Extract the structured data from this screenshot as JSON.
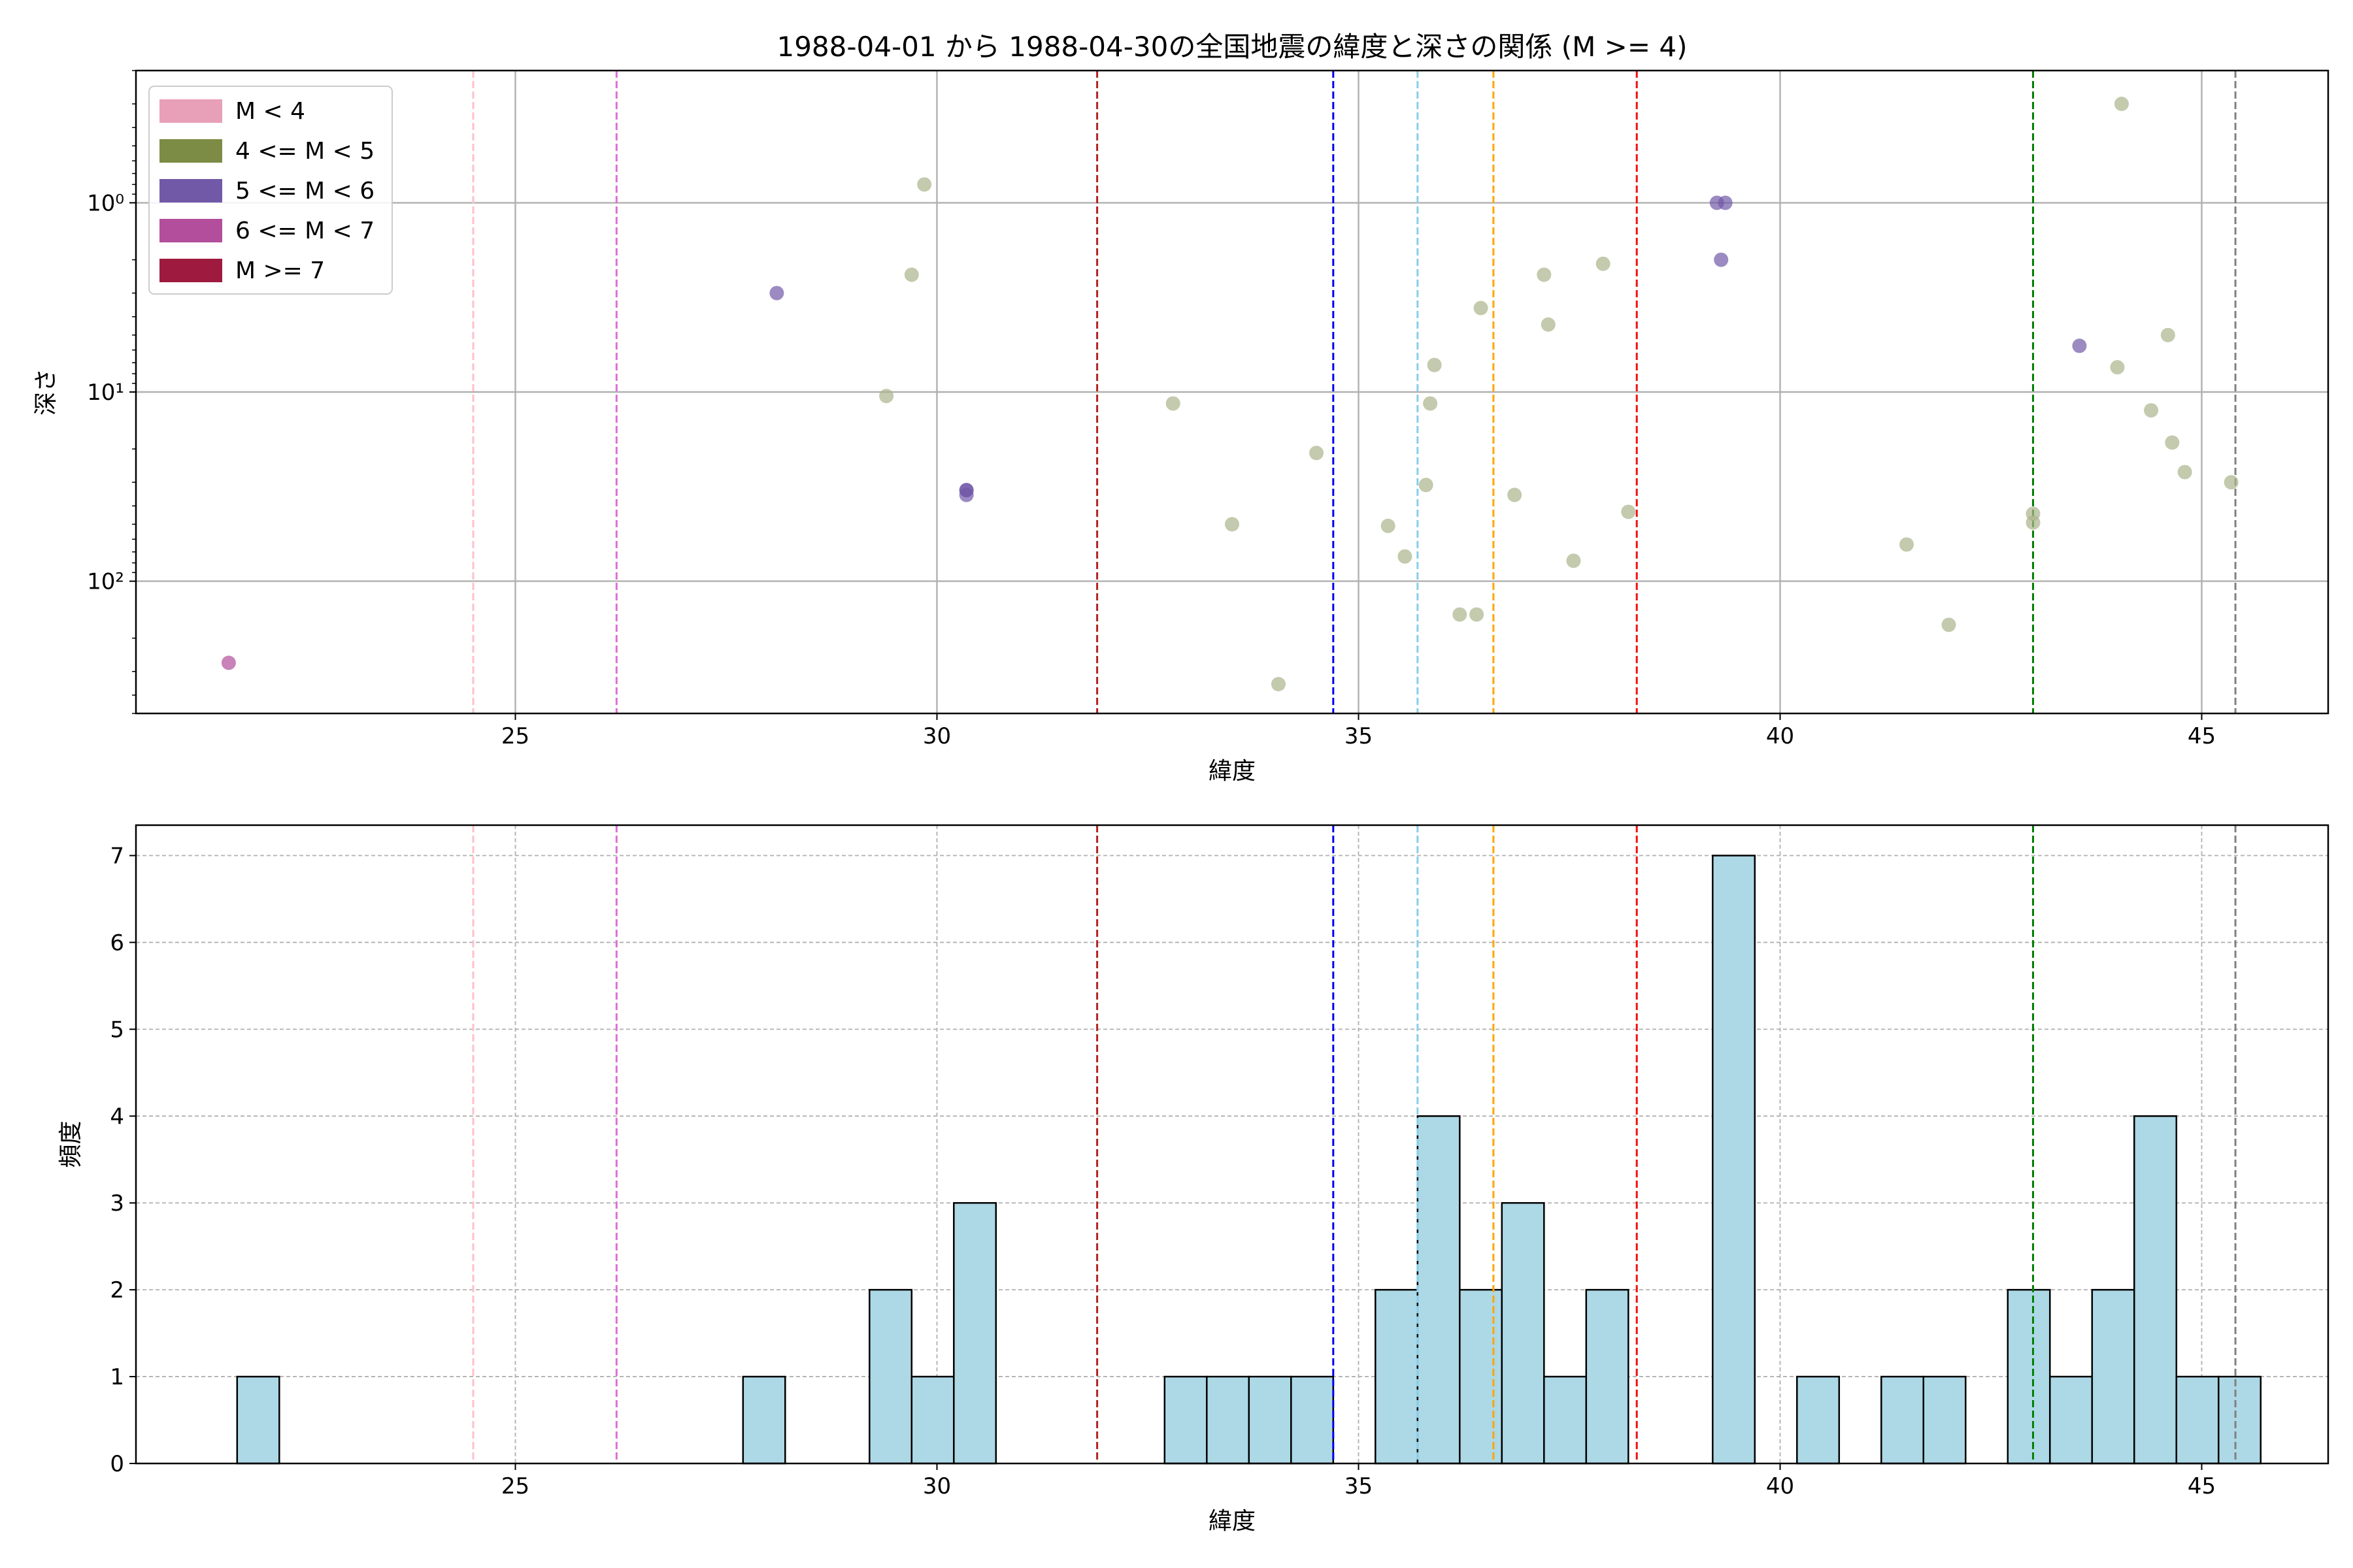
{
  "chart_data": [
    {
      "type": "scatter",
      "title": "1988-04-01 から 1988-04-30の全国地震の緯度と深さの関係 (M >= 4)",
      "xlabel": "緯度",
      "ylabel": "深さ",
      "xlim": [
        20.5,
        46.5
      ],
      "ylim": [
        500,
        0.2
      ],
      "yscale": "log",
      "y_inverted": true,
      "grid": true,
      "legend_position": "top-left",
      "x_ticks": [
        "25",
        "30",
        "35",
        "40",
        "45"
      ],
      "y_tick_values": [
        1,
        10,
        100
      ],
      "y_ticks": [
        "10⁰",
        "10¹",
        "10²"
      ],
      "legend": [
        {
          "label": "M < 4",
          "color": "#e8a0b8"
        },
        {
          "label": "4 <= M < 5",
          "color": "#7d8c45"
        },
        {
          "label": "5 <= M < 6",
          "color": "#7259a8"
        },
        {
          "label": "6 <= M < 7",
          "color": "#b24e9b"
        },
        {
          "label": "M >= 7",
          "color": "#9e1b3f"
        }
      ],
      "vlines": [
        {
          "x": 24.5,
          "color": "pink"
        },
        {
          "x": 26.2,
          "color": "orchid"
        },
        {
          "x": 31.9,
          "color": "#b22222"
        },
        {
          "x": 34.7,
          "color": "#0000ee"
        },
        {
          "x": 35.7,
          "color": "skyblue"
        },
        {
          "x": 36.6,
          "color": "orange"
        },
        {
          "x": 38.3,
          "color": "#ee1111"
        },
        {
          "x": 43.0,
          "color": "green"
        },
        {
          "x": 45.4,
          "color": "gray"
        }
      ],
      "series": [
        {
          "name": "4 <= M < 5",
          "color": "#aab48a",
          "points": [
            [
              29.4,
              10.5
            ],
            [
              29.7,
              2.4
            ],
            [
              29.85,
              0.8
            ],
            [
              32.8,
              11.5
            ],
            [
              33.5,
              50
            ],
            [
              34.05,
              350
            ],
            [
              34.5,
              21
            ],
            [
              35.35,
              51
            ],
            [
              35.55,
              74
            ],
            [
              35.8,
              31
            ],
            [
              35.85,
              11.5
            ],
            [
              35.9,
              7.2
            ],
            [
              36.2,
              150
            ],
            [
              36.4,
              150
            ],
            [
              36.45,
              3.6
            ],
            [
              36.85,
              35
            ],
            [
              37.2,
              2.4
            ],
            [
              37.25,
              4.4
            ],
            [
              37.55,
              78
            ],
            [
              37.9,
              2.1
            ],
            [
              38.2,
              43
            ],
            [
              41.5,
              64
            ],
            [
              42.0,
              170
            ],
            [
              43.0,
              49
            ],
            [
              43.0,
              44
            ],
            [
              44.0,
              7.4
            ],
            [
              44.05,
              0.3
            ],
            [
              44.4,
              12.5
            ],
            [
              44.6,
              5.0
            ],
            [
              44.65,
              18.5
            ],
            [
              44.8,
              26.5
            ],
            [
              45.35,
              30
            ]
          ]
        },
        {
          "name": "5 <= M < 6",
          "color": "#7259a8",
          "points": [
            [
              28.1,
              3.0
            ],
            [
              30.35,
              33
            ],
            [
              30.35,
              33
            ],
            [
              30.35,
              35
            ],
            [
              39.25,
              1.0
            ],
            [
              39.35,
              1.0
            ],
            [
              39.3,
              2.0
            ],
            [
              43.55,
              5.7
            ]
          ]
        },
        {
          "name": "6 <= M < 7",
          "color": "#b24e9b",
          "points": [
            [
              21.6,
              270
            ]
          ]
        }
      ]
    },
    {
      "type": "bar",
      "title": "",
      "xlabel": "緯度",
      "ylabel": "頻度",
      "xlim": [
        20.5,
        46.5
      ],
      "ylim": [
        0,
        7.35
      ],
      "grid": true,
      "x_ticks": [
        "25",
        "30",
        "35",
        "40",
        "45"
      ],
      "y_ticks": [
        "0",
        "1",
        "2",
        "3",
        "4",
        "5",
        "6",
        "7"
      ],
      "bar_color": "#add8e6",
      "bin_width": 0.5,
      "bins": [
        {
          "x0": 21.7,
          "count": 1
        },
        {
          "x0": 27.7,
          "count": 1
        },
        {
          "x0": 29.2,
          "count": 2
        },
        {
          "x0": 29.7,
          "count": 1
        },
        {
          "x0": 30.2,
          "count": 3
        },
        {
          "x0": 32.7,
          "count": 1
        },
        {
          "x0": 33.2,
          "count": 1
        },
        {
          "x0": 33.7,
          "count": 1
        },
        {
          "x0": 34.2,
          "count": 1
        },
        {
          "x0": 35.2,
          "count": 2
        },
        {
          "x0": 35.7,
          "count": 4
        },
        {
          "x0": 36.2,
          "count": 2
        },
        {
          "x0": 36.7,
          "count": 3
        },
        {
          "x0": 37.2,
          "count": 1
        },
        {
          "x0": 37.7,
          "count": 2
        },
        {
          "x0": 39.2,
          "count": 7
        },
        {
          "x0": 40.2,
          "count": 1
        },
        {
          "x0": 41.2,
          "count": 1
        },
        {
          "x0": 41.7,
          "count": 1
        },
        {
          "x0": 42.7,
          "count": 2
        },
        {
          "x0": 43.2,
          "count": 1
        },
        {
          "x0": 43.7,
          "count": 2
        },
        {
          "x0": 44.2,
          "count": 4
        },
        {
          "x0": 44.7,
          "count": 1
        },
        {
          "x0": 45.2,
          "count": 1
        }
      ],
      "vlines": [
        {
          "x": 24.5,
          "color": "pink"
        },
        {
          "x": 26.2,
          "color": "orchid"
        },
        {
          "x": 31.9,
          "color": "#b22222"
        },
        {
          "x": 34.7,
          "color": "#0000ee"
        },
        {
          "x": 35.7,
          "color": "skyblue"
        },
        {
          "x": 36.6,
          "color": "orange"
        },
        {
          "x": 38.3,
          "color": "#ee1111"
        },
        {
          "x": 43.0,
          "color": "green"
        },
        {
          "x": 45.4,
          "color": "gray"
        }
      ]
    }
  ]
}
